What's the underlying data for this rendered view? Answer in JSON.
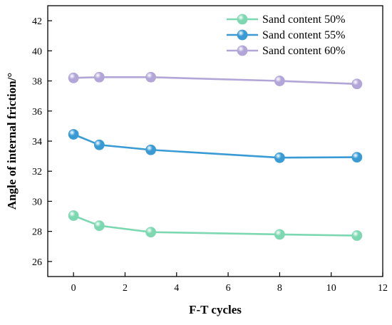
{
  "chart_data": {
    "type": "line",
    "xlabel": "F-T cycles",
    "ylabel": "Angle of internal friction/°",
    "xlim": [
      -1,
      12
    ],
    "ylim": [
      25,
      43
    ],
    "xticks": [
      0,
      2,
      4,
      6,
      8,
      10,
      12
    ],
    "yticks": [
      26,
      28,
      30,
      32,
      34,
      36,
      38,
      40,
      42
    ],
    "grid": false,
    "legend": "top-right",
    "x": [
      0,
      1,
      3,
      8,
      11
    ],
    "series": [
      {
        "name": "Sand content 50%",
        "color": "#7dd8b2",
        "values": [
          29.05,
          28.38,
          27.95,
          27.8,
          27.72
        ]
      },
      {
        "name": "Sand content 55%",
        "color": "#3a9bd4",
        "values": [
          34.45,
          33.75,
          33.42,
          32.9,
          32.93
        ]
      },
      {
        "name": "Sand content 60%",
        "color": "#b2a6d8",
        "values": [
          38.2,
          38.25,
          38.25,
          38.0,
          37.8
        ]
      }
    ]
  }
}
